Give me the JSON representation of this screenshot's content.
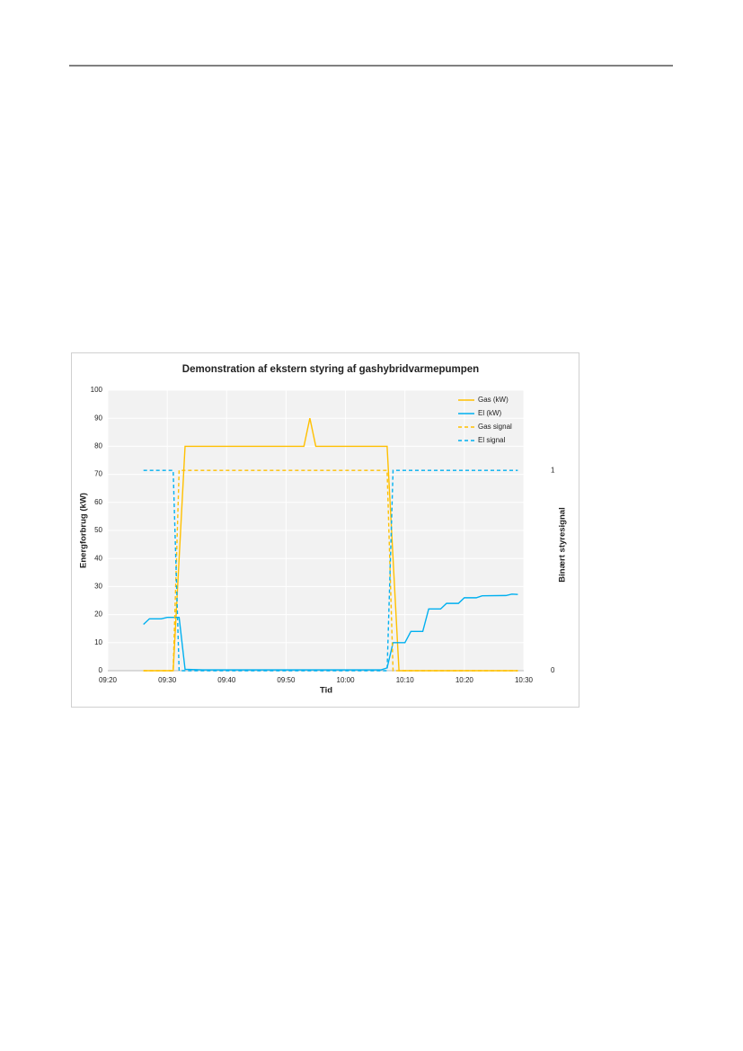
{
  "chart_data": {
    "type": "line",
    "title": "Demonstration af ekstern styring af gashybridvarmepumpen",
    "xlabel": "Tid",
    "ylabel": "Energforbrug (kW)",
    "y2label": "Binært styresignal",
    "xlim": [
      "09:20",
      "10:30"
    ],
    "xticks": [
      "09:20",
      "09:30",
      "09:40",
      "09:50",
      "10:00",
      "10:10",
      "10:20",
      "10:30"
    ],
    "ylim": [
      0,
      100
    ],
    "yticks": [
      0,
      10,
      20,
      30,
      40,
      50,
      60,
      70,
      80,
      90,
      100
    ],
    "y2lim": [
      0,
      1.4
    ],
    "y2ticks": [
      0,
      1
    ],
    "grid": true,
    "legend": "top-right",
    "series": [
      {
        "name": "Gas (kW)",
        "color": "#ffc000",
        "dashed": false,
        "x": [
          "09:26",
          "09:31",
          "09:33",
          "09:53",
          "09:54",
          "09:55",
          "10:07",
          "10:09",
          "10:29"
        ],
        "values": [
          0,
          0,
          80,
          80,
          90,
          80,
          80,
          0,
          0
        ]
      },
      {
        "name": "El (kW)",
        "color": "#00b0f0",
        "dashed": false,
        "x": [
          "09:26",
          "09:27",
          "09:29",
          "09:30",
          "09:32",
          "09:33",
          "09:36",
          "10:06",
          "10:07",
          "10:08",
          "10:10",
          "10:11",
          "10:13",
          "10:14",
          "10:16",
          "10:17",
          "10:19",
          "10:20",
          "10:22",
          "10:23",
          "10:27",
          "10:28",
          "10:29"
        ],
        "values": [
          16.5,
          18.5,
          18.5,
          19,
          19,
          0.5,
          0.3,
          0.3,
          1,
          10,
          10,
          14,
          14,
          22,
          22,
          24,
          24,
          26,
          26,
          26.7,
          26.8,
          27.3,
          27.2
        ]
      },
      {
        "name": "Gas signal",
        "color": "#ffc000",
        "dashed": true,
        "axis": "y2",
        "x": [
          "09:26",
          "09:31",
          "09:32",
          "10:07",
          "10:08",
          "10:29"
        ],
        "values": [
          0,
          0,
          1,
          1,
          0,
          0
        ]
      },
      {
        "name": "El signal",
        "color": "#00b0f0",
        "dashed": true,
        "axis": "y2",
        "x": [
          "09:26",
          "09:31",
          "09:32",
          "10:07",
          "10:08",
          "10:29"
        ],
        "values": [
          1,
          1,
          0,
          0,
          1,
          1
        ]
      }
    ]
  }
}
